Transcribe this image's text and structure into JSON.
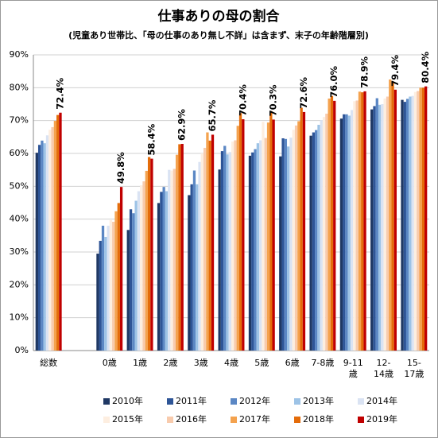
{
  "chart_data": {
    "type": "bar",
    "title": "仕事ありの母の割合",
    "subtitle": "(児童あり世帯比、「母の仕事のあり無し不詳」は含まず、末子の年齢階層別)",
    "categories": [
      "総数",
      null,
      "0歳",
      "1歳",
      "2歳",
      "3歳",
      "4歳",
      "5歳",
      "6歳",
      "7-8歳",
      "9-11歳",
      "12-14歳",
      "15-17歳"
    ],
    "ylim": [
      0,
      90
    ],
    "yticks": [
      {
        "value": 0,
        "label": "0%"
      },
      {
        "value": 10,
        "label": "10%"
      },
      {
        "value": 20,
        "label": "20%"
      },
      {
        "value": 30,
        "label": "30%"
      },
      {
        "value": 40,
        "label": "40%"
      },
      {
        "value": 50,
        "label": "50%"
      },
      {
        "value": 60,
        "label": "60%"
      },
      {
        "value": 70,
        "label": "70%"
      },
      {
        "value": 80,
        "label": "80%"
      },
      {
        "value": 90,
        "label": "90%"
      }
    ],
    "grid": true,
    "series": [
      {
        "name": "2010年",
        "color": "#1f3864",
        "values": [
          60.2,
          null,
          29.5,
          36.7,
          44.9,
          47.3,
          55.1,
          59.3,
          59.1,
          65.4,
          70.6,
          73.4,
          76.3
        ]
      },
      {
        "name": "2011年",
        "color": "#2e5597",
        "values": [
          62.6,
          null,
          33.4,
          43.0,
          48.3,
          50.6,
          60.7,
          60.3,
          64.6,
          66.4,
          71.9,
          74.4,
          75.7
        ]
      },
      {
        "name": "2012年",
        "color": "#5b87c4",
        "values": [
          63.9,
          null,
          38.0,
          41.8,
          49.8,
          54.8,
          62.3,
          61.3,
          64.4,
          67.1,
          71.9,
          76.8,
          76.6
        ]
      },
      {
        "name": "2013年",
        "color": "#9dc3e6",
        "values": [
          63.1,
          null,
          34.6,
          45.6,
          48.5,
          50.6,
          59.7,
          63.1,
          62.1,
          68.7,
          71.5,
          74.8,
          77.3
        ]
      },
      {
        "name": "2014年",
        "color": "#dae3f3",
        "values": [
          65.5,
          null,
          38.0,
          48.5,
          55.0,
          57.4,
          60.4,
          64.0,
          64.8,
          70.1,
          73.2,
          75.0,
          77.5
        ]
      },
      {
        "name": "2015年",
        "color": "#fdeee0",
        "values": [
          67.2,
          null,
          39.7,
          50.3,
          54.8,
          60.0,
          63.6,
          69.6,
          67.2,
          71.1,
          75.9,
          76.7,
          78.7
        ]
      },
      {
        "name": "2016年",
        "color": "#f8cbad",
        "values": [
          68.0,
          null,
          39.2,
          51.5,
          55.3,
          61.7,
          64.0,
          64.7,
          68.5,
          72.1,
          76.1,
          77.3,
          79.0
        ]
      },
      {
        "name": "2017年",
        "color": "#f4a24e",
        "values": [
          69.9,
          null,
          42.4,
          54.7,
          59.6,
          66.4,
          68.4,
          69.4,
          69.8,
          76.7,
          78.8,
          82.5,
          80.0
        ]
      },
      {
        "name": "2018年",
        "color": "#e46c0a",
        "values": [
          71.7,
          null,
          44.9,
          58.9,
          62.8,
          63.9,
          72.3,
          72.9,
          73.9,
          77.5,
          78.6,
          81.7,
          80.0
        ]
      },
      {
        "name": "2019年",
        "color": "#c00000",
        "values": [
          72.4,
          null,
          49.8,
          58.4,
          62.9,
          65.7,
          70.4,
          70.3,
          72.6,
          76.0,
          78.9,
          79.4,
          80.4
        ],
        "value_labels": [
          "72.4%",
          null,
          "49.8%",
          "58.4%",
          "62.9%",
          "65.7%",
          "70.4%",
          "70.3%",
          "72.6%",
          "76.0%",
          "78.9%",
          "79.4%",
          "80.4%"
        ]
      }
    ]
  }
}
